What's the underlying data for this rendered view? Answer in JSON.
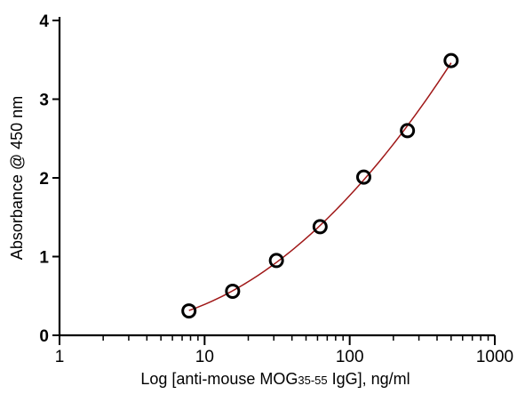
{
  "chart_data": {
    "type": "scatter",
    "title": "",
    "xlabel": {
      "prefix": "Log [anti-mouse MOG",
      "subscript": "35-55",
      "suffix": " IgG], ng/ml"
    },
    "ylabel": "Absorbance @ 450 nm",
    "x_scale": "log",
    "xlim": [
      1,
      1000
    ],
    "ylim": [
      0,
      4
    ],
    "x_ticks": [
      1,
      10,
      100,
      1000
    ],
    "x_tick_labels": [
      "1",
      "10",
      "100",
      "1000"
    ],
    "y_ticks": [
      0,
      1,
      2,
      3,
      4
    ],
    "y_tick_labels": [
      "0",
      "1",
      "2",
      "3",
      "4"
    ],
    "grid": false,
    "series": [
      {
        "x": [
          7.8,
          15.6,
          31.25,
          62.5,
          125,
          250,
          500
        ],
        "y": [
          0.31,
          0.56,
          0.95,
          1.38,
          2.01,
          2.6,
          3.49
        ]
      }
    ],
    "fit_curve": {
      "color": "#a01818"
    },
    "marker_color": "#000000"
  }
}
